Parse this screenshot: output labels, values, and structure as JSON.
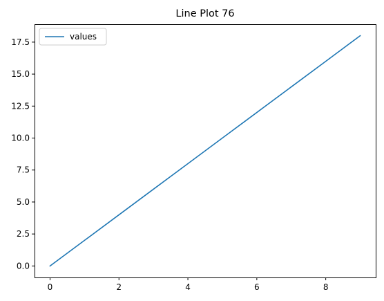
{
  "chart_data": {
    "type": "line",
    "title": "Line Plot 76",
    "xlabel": "",
    "ylabel": "",
    "x": [
      0,
      1,
      2,
      3,
      4,
      5,
      6,
      7,
      8,
      9
    ],
    "series": [
      {
        "name": "values",
        "values": [
          0,
          2,
          4,
          6,
          8,
          10,
          12,
          14,
          16,
          18
        ],
        "color": "#1f77b4"
      }
    ],
    "xlim": [
      -0.45,
      9.45
    ],
    "ylim": [
      -0.9,
      18.9
    ],
    "x_ticks": [
      0,
      2,
      4,
      6,
      8
    ],
    "x_tick_labels": [
      "0",
      "2",
      "4",
      "6",
      "8"
    ],
    "y_ticks": [
      0,
      2.5,
      5,
      7.5,
      10,
      12.5,
      15,
      17.5
    ],
    "y_tick_labels": [
      "0.0",
      "2.5",
      "5.0",
      "7.5",
      "10.0",
      "12.5",
      "15.0",
      "17.5"
    ],
    "grid": false,
    "legend": {
      "position": "top-left",
      "entries": [
        "values"
      ]
    }
  }
}
